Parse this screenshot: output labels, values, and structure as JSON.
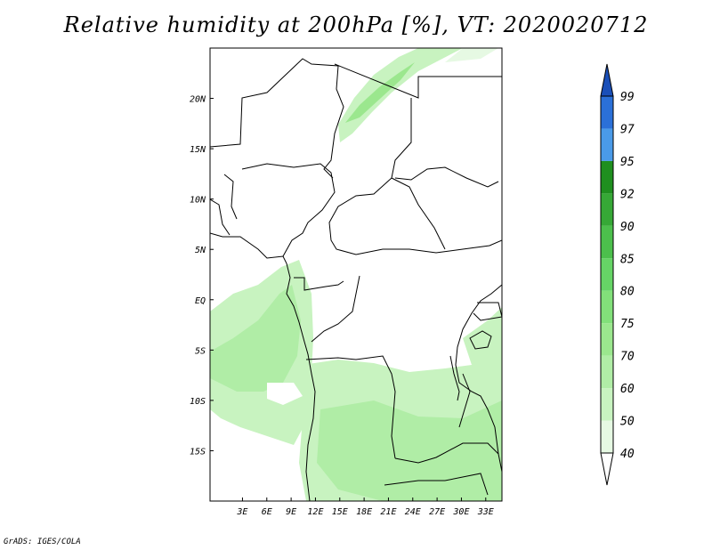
{
  "title": "Relative humidity at 200hPa [%], VT: 2020020712",
  "credit": "GrADS: IGES/COLA",
  "map": {
    "lon_range": [
      -1,
      35
    ],
    "lat_range": [
      -20,
      25
    ],
    "lon_ticks": [
      {
        "value": 3,
        "label": "3E"
      },
      {
        "value": 6,
        "label": "6E"
      },
      {
        "value": 9,
        "label": "9E"
      },
      {
        "value": 12,
        "label": "12E"
      },
      {
        "value": 15,
        "label": "15E"
      },
      {
        "value": 18,
        "label": "18E"
      },
      {
        "value": 21,
        "label": "21E"
      },
      {
        "value": 24,
        "label": "24E"
      },
      {
        "value": 27,
        "label": "27E"
      },
      {
        "value": 30,
        "label": "30E"
      },
      {
        "value": 33,
        "label": "33E"
      }
    ],
    "lat_ticks": [
      {
        "value": 20,
        "label": "20N"
      },
      {
        "value": 15,
        "label": "15N"
      },
      {
        "value": 10,
        "label": "10N"
      },
      {
        "value": 5,
        "label": "5N"
      },
      {
        "value": 0,
        "label": "EQ"
      },
      {
        "value": -5,
        "label": "5S"
      },
      {
        "value": -10,
        "label": "10S"
      },
      {
        "value": -15,
        "label": "15S"
      }
    ]
  },
  "colorbar": {
    "levels": [
      "40",
      "50",
      "60",
      "70",
      "75",
      "80",
      "85",
      "90",
      "92",
      "95",
      "97",
      "99"
    ],
    "colors": [
      "#ffffff",
      "#e6f9e3",
      "#c8f3c0",
      "#b0eda6",
      "#9be78e",
      "#82e07a",
      "#66d466",
      "#4cbf4c",
      "#36a836",
      "#1f8f1f",
      "#4a9ae8",
      "#2b70d8",
      "#1a4fb8"
    ]
  },
  "colors": {
    "coast": "#000000"
  }
}
